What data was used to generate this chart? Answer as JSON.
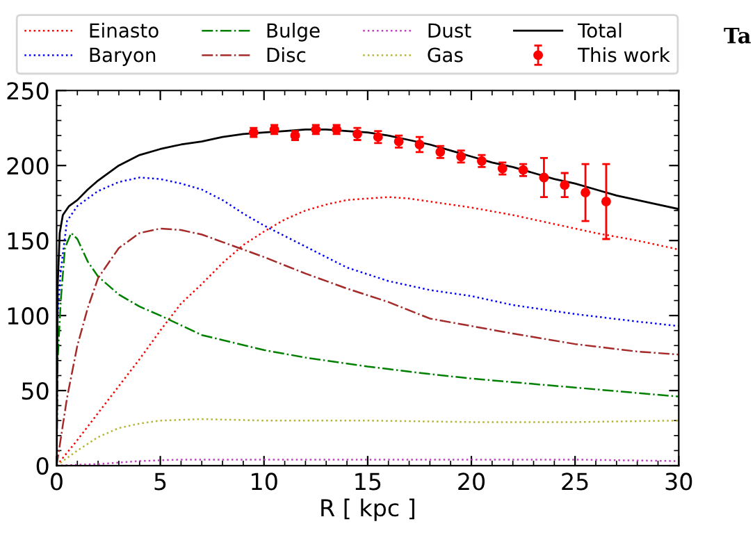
{
  "chart_data": {
    "type": "line",
    "xlabel": "R [ kpc ]",
    "xlim": [
      0,
      30
    ],
    "xticks": [
      0,
      5,
      10,
      15,
      20,
      25,
      30
    ],
    "ylim": [
      0,
      250
    ],
    "yticks": [
      0,
      50,
      100,
      150,
      200,
      250
    ],
    "legend": "top",
    "grid": false,
    "series": [
      {
        "name": "Einasto",
        "color": "#ff0000",
        "line_style": "dotted",
        "x": [
          0,
          1,
          2,
          3,
          4,
          5,
          6,
          7,
          8,
          9,
          10,
          11,
          12,
          13,
          14,
          15,
          16,
          17,
          18,
          20,
          22,
          24,
          26,
          28,
          30
        ],
        "values": [
          0,
          17,
          35,
          53,
          71,
          90,
          108,
          121,
          135,
          147,
          156,
          164,
          170,
          174,
          177,
          178,
          179,
          178,
          176,
          172,
          167,
          161,
          155,
          150,
          144
        ]
      },
      {
        "name": "Baryon",
        "color": "#0000ff",
        "line_style": "dotted",
        "x": [
          0,
          0.05,
          0.2,
          0.5,
          1,
          2,
          3,
          4,
          5,
          6,
          7,
          8,
          9,
          10,
          12,
          14,
          16,
          18,
          20,
          22,
          25,
          28,
          30
        ],
        "values": [
          0,
          100,
          130,
          163,
          173,
          183,
          189,
          192,
          191,
          188,
          184,
          177,
          168,
          160,
          146,
          132,
          123,
          117,
          113,
          107,
          101,
          96,
          93
        ]
      },
      {
        "name": "Bulge",
        "color": "#008000",
        "line_style": "dashdot",
        "x": [
          0,
          0.05,
          0.2,
          0.4,
          0.7,
          1,
          1.5,
          2,
          3,
          4,
          5,
          7,
          10,
          12,
          15,
          18,
          20,
          25,
          30
        ],
        "values": [
          0,
          70,
          110,
          145,
          155,
          151,
          136,
          126,
          114,
          106,
          100,
          87,
          77,
          72,
          66,
          61,
          58,
          52,
          46
        ]
      },
      {
        "name": "Disc",
        "color": "#a52a2a",
        "line_style": "dashdot",
        "x": [
          0,
          0.5,
          1,
          1.5,
          2,
          3,
          4,
          5,
          6,
          7,
          8,
          10,
          12,
          14,
          16,
          18,
          20,
          22,
          25,
          28,
          30
        ],
        "values": [
          0,
          45,
          80,
          105,
          125,
          145,
          155,
          158,
          157,
          154,
          149,
          139,
          128,
          118,
          109,
          98,
          93,
          88,
          81,
          76,
          74
        ]
      },
      {
        "name": "Dust",
        "color": "#bf40bf",
        "line_style": "dotted",
        "x": [
          0,
          2,
          4,
          6,
          10,
          15,
          20,
          25,
          30
        ],
        "values": [
          0,
          1,
          3,
          4,
          4,
          4,
          4,
          4,
          3
        ]
      },
      {
        "name": "Gas",
        "color": "#b5b535",
        "line_style": "dotted",
        "x": [
          0,
          1,
          2,
          3,
          4,
          5,
          7,
          10,
          15,
          20,
          25,
          30
        ],
        "values": [
          0,
          10,
          19,
          25,
          28,
          30,
          31,
          30,
          30,
          29,
          29,
          30
        ]
      },
      {
        "name": "Total",
        "color": "#000000",
        "line_style": "solid",
        "x": [
          0,
          0.05,
          0.15,
          0.3,
          0.6,
          1,
          1.5,
          2,
          3,
          4,
          5,
          6,
          7,
          8,
          9,
          10,
          11,
          12,
          13,
          14,
          15,
          16,
          17,
          18,
          19,
          20,
          21,
          22,
          23,
          24,
          25,
          26,
          27,
          28,
          29,
          30
        ],
        "values": [
          0,
          120,
          155,
          167,
          173,
          177,
          184,
          190,
          200,
          207,
          211,
          214,
          216,
          219,
          221,
          222,
          223,
          224,
          224,
          223,
          222,
          220,
          217,
          214,
          210,
          206,
          202,
          199,
          195,
          191,
          188,
          184,
          180,
          177,
          174,
          171
        ]
      },
      {
        "name": "This work",
        "type": "scatter",
        "marker": "circle",
        "color": "#ff0000",
        "x": [
          9.5,
          10.5,
          11.5,
          12.5,
          13.5,
          14.5,
          15.5,
          16.5,
          17.5,
          18.5,
          19.5,
          20.5,
          21.5,
          22.5,
          23.5,
          24.5,
          25.5,
          26.5
        ],
        "values": [
          222,
          224,
          220,
          224,
          224,
          221,
          219,
          216,
          214,
          209,
          206,
          203,
          198,
          197,
          192,
          187,
          182,
          176
        ],
        "errors": [
          3,
          3,
          3,
          3,
          3,
          4,
          4,
          4,
          5,
          4,
          4,
          4,
          4,
          4,
          13,
          8,
          19,
          25
        ]
      }
    ],
    "annotations": [
      "Ta"
    ]
  }
}
